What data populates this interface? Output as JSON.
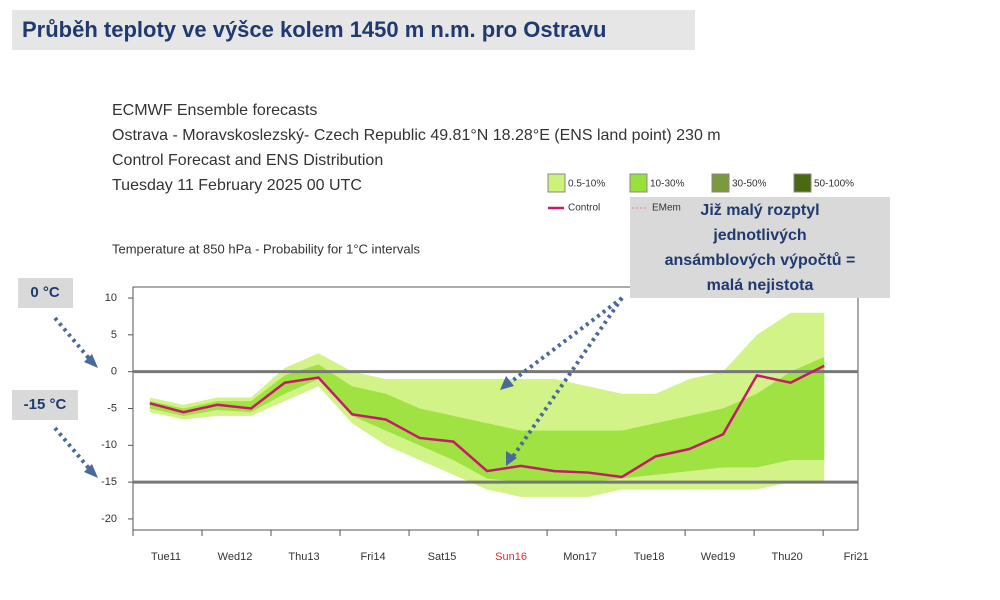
{
  "chart_data": {
    "type": "line",
    "title": "Průběh teploty ve výšce kolem 1450 m n.m. pro Ostravu",
    "header_lines": [
      "ECMWF Ensemble forecasts",
      "Ostrava - Moravskoslezský- Czech Republic 49.81°N 18.28°E (ENS land point) 230 m",
      "Control Forecast and ENS Distribution",
      "Tuesday 11 February 2025 00 UTC"
    ],
    "subtitle": "Temperature at 850 hPa - Probability for 1°C intervals",
    "categories": [
      "Tue11",
      "Wed12",
      "Thu13",
      "Fri14",
      "Sat15",
      "Sun16",
      "Mon17",
      "Tue18",
      "Wed19",
      "Thu20",
      "Fri21"
    ],
    "highlight_index": 5,
    "highlight_color": "#e8302a",
    "x": [
      0,
      12,
      24,
      36,
      48,
      60,
      72,
      84,
      96,
      108,
      120,
      132,
      144,
      156,
      168,
      180,
      192,
      204,
      216,
      228,
      240
    ],
    "xlim": [
      -6,
      252
    ],
    "ylim": [
      -21.5,
      11.5
    ],
    "yticks": [
      10,
      5,
      0,
      -5,
      -10,
      -15,
      -20
    ],
    "bands": [
      {
        "name": "0.5-10%",
        "color": "#ccf27a",
        "low": [
          -5.5,
          -6.5,
          -6,
          -6,
          -4,
          -2,
          -7,
          -10,
          -12,
          -14,
          -16,
          -17,
          -17,
          -17,
          -16,
          -16,
          -16,
          -16,
          -16,
          -15,
          -15
        ],
        "high": [
          -3.5,
          -4.5,
          -3.5,
          -3.5,
          0.5,
          2.5,
          0,
          -1,
          -1,
          -1,
          -1,
          -1,
          -1,
          -2,
          -3,
          -3,
          -1,
          0,
          5,
          8,
          8
        ]
      },
      {
        "name": "10-30%",
        "color": "#99e03a",
        "low": [
          -5,
          -6,
          -5.2,
          -5.5,
          -3,
          -1,
          -6,
          -8,
          -10,
          -12,
          -14.5,
          -15,
          -15,
          -15,
          -14.5,
          -14,
          -13.5,
          -13,
          -13,
          -12,
          -12
        ],
        "high": [
          -4,
          -5,
          -4,
          -4,
          -0.5,
          1,
          -2,
          -3,
          -5,
          -6,
          -7,
          -8,
          -8,
          -8,
          -8,
          -7,
          -6,
          -5,
          -3,
          0,
          2
        ]
      },
      {
        "name": "30-50%",
        "color": "#7a9a3c"
      },
      {
        "name": "50-100%",
        "color": "#4a6a12"
      }
    ],
    "series": [
      {
        "name": "Control",
        "color": "#c8186e",
        "values": [
          -4.3,
          -5.5,
          -4.5,
          -5.0,
          -1.5,
          -0.8,
          -5.8,
          -6.5,
          -9.0,
          -9.5,
          -13.5,
          -12.8,
          -13.5,
          -13.7,
          -14.3,
          -11.5,
          -10.5,
          -8.5,
          -0.5,
          -1.5,
          0.8
        ]
      },
      {
        "name": "EMem",
        "color": "#f090b0"
      }
    ],
    "reference_lines": [
      0,
      -15
    ],
    "reference_labels": [
      "0 °C",
      "-15 °C"
    ],
    "annotation": [
      "Již malý rozptyl",
      "jednotlivých",
      "ansámblových výpočtů =",
      "malá nejistota"
    ]
  }
}
